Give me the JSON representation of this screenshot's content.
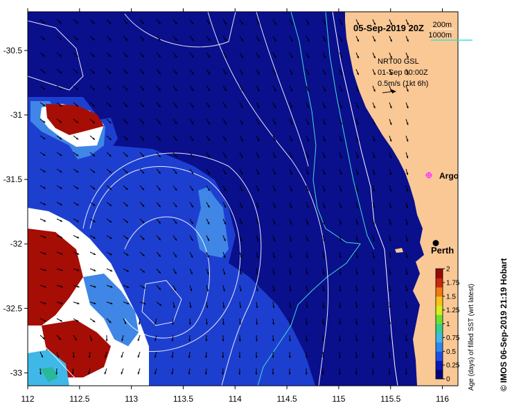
{
  "title": "05-Sep-2019 20Z",
  "isobath_legend": {
    "label_200": "200m",
    "label_1000": "1000m",
    "color_200": "#ffffff",
    "color_1000": "#40e0d0"
  },
  "current_source": {
    "line1": "NRT00 GSL",
    "line2": "01-Sep 00:00Z",
    "line3": "0.5m/s (1kt 6h)"
  },
  "markers": {
    "argo": {
      "label": "Argo",
      "lon": 115.78,
      "lat": -31.45,
      "color": "#ff33ff"
    },
    "perth": {
      "label": "Perth",
      "lon": 115.86,
      "lat": -31.96,
      "color": "#000000"
    }
  },
  "x_axis": {
    "min": 112,
    "max": 116.15,
    "ticks": [
      "112",
      "112.5",
      "113",
      "113.5",
      "114",
      "114.5",
      "115",
      "115.5",
      "116"
    ]
  },
  "y_axis": {
    "min": -33.1,
    "max": -30.2,
    "ticks": [
      "-30.5",
      "-31",
      "-31.5",
      "-32",
      "-32.5",
      "-33"
    ]
  },
  "colorbar": {
    "label": "Age (days) of filled SST (wrt latest)",
    "min": 0,
    "max": 2,
    "ticks": [
      "2",
      "1.75",
      "1.5",
      "1.25",
      "1",
      "0.75",
      "0.5",
      "0.25",
      "0"
    ],
    "colors": [
      "#05007a",
      "#0a17b8",
      "#1d4fe8",
      "#2e86f0",
      "#3fb8e8",
      "#33d08f",
      "#6ee032",
      "#d6ef1c",
      "#f8c21a",
      "#f07a14",
      "#c8280d",
      "#960a04"
    ]
  },
  "credit": "© IMOS 06-Sep-2019 21:19 Hobart",
  "colors": {
    "land": "#f9c895",
    "ocean_age0": "#0a0f8c",
    "ocean_age_low": "#1d3fd0",
    "patch_mid": "#3f86e6",
    "patch_old": "#a60d05",
    "no_data": "#ffffff"
  }
}
